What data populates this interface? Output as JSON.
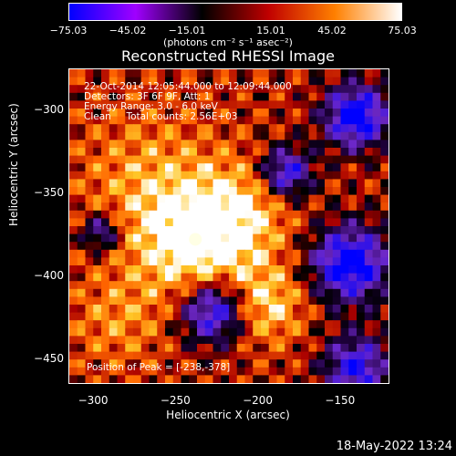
{
  "colorbar": {
    "ticks": [
      "−75.03",
      "−45.02",
      "−15.01",
      "15.01",
      "45.02",
      "75.03"
    ],
    "label": "(photons cm⁻² s⁻¹ asec⁻²)",
    "range": [
      -75.03,
      75.03
    ]
  },
  "chart_data": {
    "type": "heatmap",
    "title": "Reconstructed RHESSI Image",
    "xlabel": "Heliocentric X (arcsec)",
    "ylabel": "Heliocentric Y (arcsec)",
    "xlim": [
      -315,
      -120
    ],
    "ylim": [
      -465,
      -275
    ],
    "x_ticks": [
      "−300",
      "−250",
      "−200",
      "−150"
    ],
    "y_ticks": [
      "−300",
      "−350",
      "−400",
      "−450"
    ],
    "colormap": [
      "#0000ff",
      "#a000ff",
      "#000000",
      "#c00000",
      "#ff8000",
      "#ffffff"
    ],
    "peak": [
      -238,
      -378
    ]
  },
  "annotations": {
    "line1": "22-Oct-2014 12:05:44.000 to 12:09:44.000",
    "line2": "Detectors: 3F 6F 9F, Att: 1",
    "line3": "Energy Range: 3.0 - 6.0 keV",
    "line4": "Clean     Total counts: 2.56E+03",
    "peak_label": "Position of Peak = [-238,-378]"
  },
  "footer": "18-May-2022 13:24"
}
